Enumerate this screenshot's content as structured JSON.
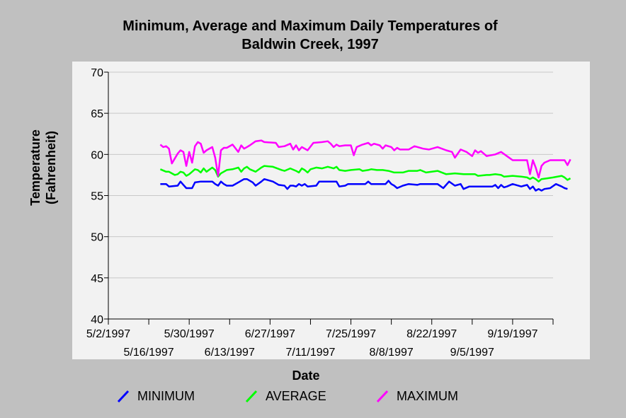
{
  "chart_data": {
    "type": "line",
    "title_lines": [
      "Minimum, Average and Maximum Daily Temperatures of",
      "Baldwin Creek, 1997"
    ],
    "xlabel": "Date",
    "ylabel_lines": [
      "Temperature",
      "(Fahrenheit)"
    ],
    "ylim": [
      40,
      70
    ],
    "yticks": [
      40,
      45,
      50,
      55,
      60,
      65,
      70
    ],
    "xlim": [
      "1997-05-02",
      "1997-10-03"
    ],
    "xticks_upper": [
      "5/2/1997",
      "5/30/1997",
      "6/27/1997",
      "7/25/1997",
      "8/22/1997",
      "9/19/1997"
    ],
    "xticks_lower": [
      "5/16/1997",
      "6/13/1997",
      "7/11/1997",
      "8/8/1997",
      "9/5/1997"
    ],
    "grid": true,
    "legend_position": "bottom",
    "colors": {
      "plot_bg": "#f2f2f2",
      "page_bg": "#c0c0c0",
      "grid": "#c8c8c8"
    },
    "series": [
      {
        "name": "MINIMUM",
        "color": "#0000ff",
        "points": [
          [
            "1997-05-20",
            56.4
          ],
          [
            "1997-05-22",
            56.4
          ],
          [
            "1997-05-23",
            56.1
          ],
          [
            "1997-05-26",
            56.2
          ],
          [
            "1997-05-27",
            56.7
          ],
          [
            "1997-05-28",
            56.3
          ],
          [
            "1997-05-29",
            55.9
          ],
          [
            "1997-05-31",
            55.9
          ],
          [
            "1997-06-01",
            56.6
          ],
          [
            "1997-06-03",
            56.7
          ],
          [
            "1997-06-07",
            56.7
          ],
          [
            "1997-06-08",
            56.4
          ],
          [
            "1997-06-09",
            56.2
          ],
          [
            "1997-06-10",
            56.7
          ],
          [
            "1997-06-11",
            56.4
          ],
          [
            "1997-06-12",
            56.2
          ],
          [
            "1997-06-14",
            56.2
          ],
          [
            "1997-06-16",
            56.6
          ],
          [
            "1997-06-18",
            57.0
          ],
          [
            "1997-06-19",
            57.0
          ],
          [
            "1997-06-21",
            56.6
          ],
          [
            "1997-06-22",
            56.2
          ],
          [
            "1997-06-24",
            56.7
          ],
          [
            "1997-06-25",
            57.0
          ],
          [
            "1997-06-27",
            56.8
          ],
          [
            "1997-06-28",
            56.7
          ],
          [
            "1997-06-30",
            56.3
          ],
          [
            "1997-07-02",
            56.2
          ],
          [
            "1997-07-03",
            55.8
          ],
          [
            "1997-07-04",
            56.2
          ],
          [
            "1997-07-05",
            56.2
          ],
          [
            "1997-07-06",
            56.1
          ],
          [
            "1997-07-07",
            56.4
          ],
          [
            "1997-07-08",
            56.2
          ],
          [
            "1997-07-09",
            56.4
          ],
          [
            "1997-07-10",
            56.1
          ],
          [
            "1997-07-13",
            56.2
          ],
          [
            "1997-07-14",
            56.7
          ],
          [
            "1997-07-20",
            56.7
          ],
          [
            "1997-07-21",
            56.1
          ],
          [
            "1997-07-23",
            56.2
          ],
          [
            "1997-07-24",
            56.4
          ],
          [
            "1997-07-30",
            56.4
          ],
          [
            "1997-07-31",
            56.7
          ],
          [
            "1997-08-01",
            56.4
          ],
          [
            "1997-08-06",
            56.4
          ],
          [
            "1997-08-07",
            56.8
          ],
          [
            "1997-08-08",
            56.4
          ],
          [
            "1997-08-09",
            56.2
          ],
          [
            "1997-08-10",
            55.9
          ],
          [
            "1997-08-12",
            56.2
          ],
          [
            "1997-08-14",
            56.4
          ],
          [
            "1997-08-17",
            56.3
          ],
          [
            "1997-08-18",
            56.4
          ],
          [
            "1997-08-24",
            56.4
          ],
          [
            "1997-08-26",
            55.9
          ],
          [
            "1997-08-28",
            56.7
          ],
          [
            "1997-08-30",
            56.2
          ],
          [
            "1997-09-01",
            56.4
          ],
          [
            "1997-09-02",
            55.8
          ],
          [
            "1997-09-04",
            56.1
          ],
          [
            "1997-09-12",
            56.1
          ],
          [
            "1997-09-13",
            56.3
          ],
          [
            "1997-09-14",
            55.9
          ],
          [
            "1997-09-15",
            56.3
          ],
          [
            "1997-09-16",
            56.0
          ],
          [
            "1997-09-17",
            56.1
          ],
          [
            "1997-09-19",
            56.4
          ],
          [
            "1997-09-22",
            56.1
          ],
          [
            "1997-09-23",
            56.2
          ],
          [
            "1997-09-24",
            56.3
          ],
          [
            "1997-09-25",
            55.8
          ],
          [
            "1997-09-26",
            56.1
          ],
          [
            "1997-09-27",
            55.6
          ],
          [
            "1997-09-28",
            55.8
          ],
          [
            "1997-09-29",
            55.6
          ],
          [
            "1997-09-30",
            55.8
          ],
          [
            "1997-10-02",
            55.9
          ],
          [
            "1997-10-04",
            56.4
          ],
          [
            "1997-10-06",
            56.1
          ],
          [
            "1997-10-07",
            55.9
          ],
          [
            "1997-10-08",
            55.8
          ]
        ]
      },
      {
        "name": "AVERAGE",
        "color": "#00ff00",
        "points": [
          [
            "1997-05-20",
            58.2
          ],
          [
            "1997-05-22",
            57.9
          ],
          [
            "1997-05-23",
            57.9
          ],
          [
            "1997-05-24",
            57.7
          ],
          [
            "1997-05-25",
            57.5
          ],
          [
            "1997-05-26",
            57.6
          ],
          [
            "1997-05-27",
            57.9
          ],
          [
            "1997-05-28",
            57.8
          ],
          [
            "1997-05-29",
            57.4
          ],
          [
            "1997-05-30",
            57.6
          ],
          [
            "1997-05-31",
            57.9
          ],
          [
            "1997-06-01",
            58.2
          ],
          [
            "1997-06-02",
            58.1
          ],
          [
            "1997-06-03",
            57.8
          ],
          [
            "1997-06-04",
            58.3
          ],
          [
            "1997-06-05",
            57.9
          ],
          [
            "1997-06-07",
            58.4
          ],
          [
            "1997-06-08",
            58.1
          ],
          [
            "1997-06-09",
            57.3
          ],
          [
            "1997-06-10",
            57.7
          ],
          [
            "1997-06-12",
            58.1
          ],
          [
            "1997-06-14",
            58.2
          ],
          [
            "1997-06-16",
            58.4
          ],
          [
            "1997-06-17",
            57.9
          ],
          [
            "1997-06-18",
            58.3
          ],
          [
            "1997-06-19",
            58.5
          ],
          [
            "1997-06-20",
            58.2
          ],
          [
            "1997-06-22",
            57.9
          ],
          [
            "1997-06-24",
            58.4
          ],
          [
            "1997-06-25",
            58.6
          ],
          [
            "1997-06-28",
            58.5
          ],
          [
            "1997-07-01",
            58.1
          ],
          [
            "1997-07-02",
            58.0
          ],
          [
            "1997-07-04",
            58.3
          ],
          [
            "1997-07-06",
            58.0
          ],
          [
            "1997-07-07",
            57.8
          ],
          [
            "1997-07-08",
            58.3
          ],
          [
            "1997-07-09",
            58.1
          ],
          [
            "1997-07-10",
            57.8
          ],
          [
            "1997-07-11",
            58.2
          ],
          [
            "1997-07-13",
            58.4
          ],
          [
            "1997-07-15",
            58.3
          ],
          [
            "1997-07-17",
            58.5
          ],
          [
            "1997-07-19",
            58.3
          ],
          [
            "1997-07-20",
            58.5
          ],
          [
            "1997-07-21",
            58.1
          ],
          [
            "1997-07-23",
            58.0
          ],
          [
            "1997-07-25",
            58.1
          ],
          [
            "1997-07-28",
            58.2
          ],
          [
            "1997-07-29",
            58.0
          ],
          [
            "1997-07-31",
            58.1
          ],
          [
            "1997-08-01",
            58.2
          ],
          [
            "1997-08-03",
            58.1
          ],
          [
            "1997-08-05",
            58.1
          ],
          [
            "1997-08-07",
            58.0
          ],
          [
            "1997-08-09",
            57.8
          ],
          [
            "1997-08-12",
            57.8
          ],
          [
            "1997-08-14",
            58.0
          ],
          [
            "1997-08-17",
            58.0
          ],
          [
            "1997-08-18",
            58.1
          ],
          [
            "1997-08-20",
            57.8
          ],
          [
            "1997-08-24",
            58.0
          ],
          [
            "1997-08-27",
            57.6
          ],
          [
            "1997-08-30",
            57.7
          ],
          [
            "1997-09-02",
            57.6
          ],
          [
            "1997-09-06",
            57.6
          ],
          [
            "1997-09-07",
            57.4
          ],
          [
            "1997-09-10",
            57.5
          ],
          [
            "1997-09-11",
            57.5
          ],
          [
            "1997-09-13",
            57.6
          ],
          [
            "1997-09-15",
            57.5
          ],
          [
            "1997-09-16",
            57.3
          ],
          [
            "1997-09-19",
            57.4
          ],
          [
            "1997-09-22",
            57.3
          ],
          [
            "1997-09-24",
            57.2
          ],
          [
            "1997-09-25",
            57.0
          ],
          [
            "1997-09-26",
            57.2
          ],
          [
            "1997-09-27",
            57.0
          ],
          [
            "1997-09-28",
            56.7
          ],
          [
            "1997-09-29",
            57.0
          ],
          [
            "1997-10-01",
            57.1
          ],
          [
            "1997-10-03",
            57.2
          ],
          [
            "1997-10-06",
            57.4
          ],
          [
            "1997-10-07",
            57.2
          ],
          [
            "1997-10-08",
            56.9
          ],
          [
            "1997-10-09",
            57.1
          ]
        ]
      },
      {
        "name": "MAXIMUM",
        "color": "#ff00ff",
        "points": [
          [
            "1997-05-20",
            61.2
          ],
          [
            "1997-05-21",
            60.9
          ],
          [
            "1997-05-22",
            61.0
          ],
          [
            "1997-05-23",
            60.7
          ],
          [
            "1997-05-24",
            58.9
          ],
          [
            "1997-05-25",
            59.5
          ],
          [
            "1997-05-26",
            60.1
          ],
          [
            "1997-05-27",
            60.5
          ],
          [
            "1997-05-28",
            60.3
          ],
          [
            "1997-05-29",
            58.6
          ],
          [
            "1997-05-30",
            60.3
          ],
          [
            "1997-05-31",
            59.0
          ],
          [
            "1997-06-01",
            61.0
          ],
          [
            "1997-06-02",
            61.5
          ],
          [
            "1997-06-03",
            61.3
          ],
          [
            "1997-06-04",
            60.2
          ],
          [
            "1997-06-05",
            60.5
          ],
          [
            "1997-06-07",
            60.9
          ],
          [
            "1997-06-08",
            59.6
          ],
          [
            "1997-06-09",
            57.4
          ],
          [
            "1997-06-10",
            60.5
          ],
          [
            "1997-06-11",
            60.8
          ],
          [
            "1997-06-12",
            60.8
          ],
          [
            "1997-06-14",
            61.2
          ],
          [
            "1997-06-16",
            60.3
          ],
          [
            "1997-06-17",
            61.1
          ],
          [
            "1997-06-18",
            60.7
          ],
          [
            "1997-06-19",
            60.9
          ],
          [
            "1997-06-20",
            61.1
          ],
          [
            "1997-06-22",
            61.6
          ],
          [
            "1997-06-24",
            61.7
          ],
          [
            "1997-06-25",
            61.5
          ],
          [
            "1997-06-29",
            61.4
          ],
          [
            "1997-06-30",
            60.9
          ],
          [
            "1997-07-02",
            61.0
          ],
          [
            "1997-07-04",
            61.3
          ],
          [
            "1997-07-05",
            60.6
          ],
          [
            "1997-07-06",
            61.1
          ],
          [
            "1997-07-07",
            60.5
          ],
          [
            "1997-07-08",
            60.9
          ],
          [
            "1997-07-10",
            60.5
          ],
          [
            "1997-07-12",
            61.4
          ],
          [
            "1997-07-15",
            61.5
          ],
          [
            "1997-07-17",
            61.6
          ],
          [
            "1997-07-18",
            61.3
          ],
          [
            "1997-07-19",
            60.9
          ],
          [
            "1997-07-20",
            61.2
          ],
          [
            "1997-07-21",
            61.0
          ],
          [
            "1997-07-23",
            61.1
          ],
          [
            "1997-07-25",
            61.1
          ],
          [
            "1997-07-26",
            59.9
          ],
          [
            "1997-07-27",
            60.9
          ],
          [
            "1997-07-29",
            61.2
          ],
          [
            "1997-07-31",
            61.4
          ],
          [
            "1997-08-01",
            61.1
          ],
          [
            "1997-08-02",
            61.3
          ],
          [
            "1997-08-04",
            61.1
          ],
          [
            "1997-08-05",
            60.7
          ],
          [
            "1997-08-06",
            61.1
          ],
          [
            "1997-08-08",
            60.9
          ],
          [
            "1997-08-09",
            60.5
          ],
          [
            "1997-08-10",
            60.8
          ],
          [
            "1997-08-11",
            60.6
          ],
          [
            "1997-08-14",
            60.6
          ],
          [
            "1997-08-16",
            61.0
          ],
          [
            "1997-08-19",
            60.7
          ],
          [
            "1997-08-21",
            60.6
          ],
          [
            "1997-08-24",
            60.9
          ],
          [
            "1997-08-27",
            60.5
          ],
          [
            "1997-08-29",
            60.3
          ],
          [
            "1997-08-30",
            59.6
          ],
          [
            "1997-09-01",
            60.6
          ],
          [
            "1997-09-03",
            60.3
          ],
          [
            "1997-09-05",
            59.8
          ],
          [
            "1997-09-06",
            60.5
          ],
          [
            "1997-09-07",
            60.2
          ],
          [
            "1997-09-08",
            60.4
          ],
          [
            "1997-09-10",
            59.8
          ],
          [
            "1997-09-13",
            60.0
          ],
          [
            "1997-09-15",
            60.3
          ],
          [
            "1997-09-17",
            59.8
          ],
          [
            "1997-09-19",
            59.3
          ],
          [
            "1997-09-24",
            59.3
          ],
          [
            "1997-09-25",
            57.6
          ],
          [
            "1997-09-26",
            59.3
          ],
          [
            "1997-09-27",
            58.4
          ],
          [
            "1997-09-28",
            57.2
          ],
          [
            "1997-09-29",
            58.6
          ],
          [
            "1997-09-30",
            59.0
          ],
          [
            "1997-10-02",
            59.3
          ],
          [
            "1997-10-07",
            59.3
          ],
          [
            "1997-10-08",
            58.7
          ],
          [
            "1997-10-09",
            59.4
          ]
        ]
      }
    ]
  }
}
